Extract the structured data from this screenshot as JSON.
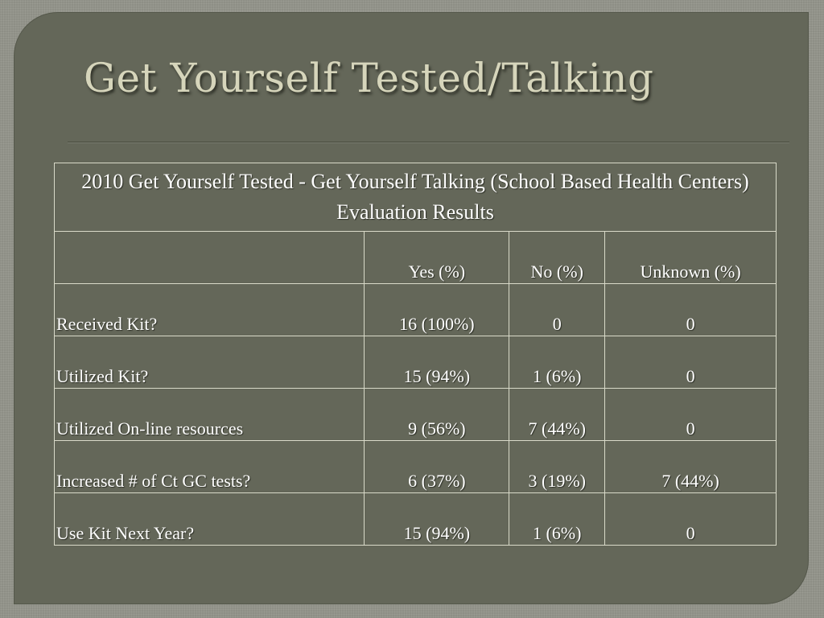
{
  "slide": {
    "title": "Get Yourself Tested/Talking"
  },
  "table": {
    "caption": "2010 Get Yourself Tested - Get Yourself Talking (School Based Health Centers) Evaluation Results",
    "headers": [
      "",
      "Yes (%)",
      "No (%)",
      "Unknown (%)"
    ],
    "rows": [
      {
        "label": "Received Kit?",
        "yes": "16 (100%)",
        "no": "0",
        "unknown": "0"
      },
      {
        "label": "Utilized Kit?",
        "yes": "15 (94%)",
        "no": "1 (6%)",
        "unknown": "0"
      },
      {
        "label": "Utilized On-line resources",
        "yes": "9 (56%)",
        "no": "7 (44%)",
        "unknown": "0"
      },
      {
        "label": "Increased # of Ct GC tests?",
        "yes": "6 (37%)",
        "no": "3 (19%)",
        "unknown": "7 (44%)"
      },
      {
        "label": "Use Kit Next Year?",
        "yes": "15 (94%)",
        "no": "1 (6%)",
        "unknown": "0"
      }
    ]
  }
}
